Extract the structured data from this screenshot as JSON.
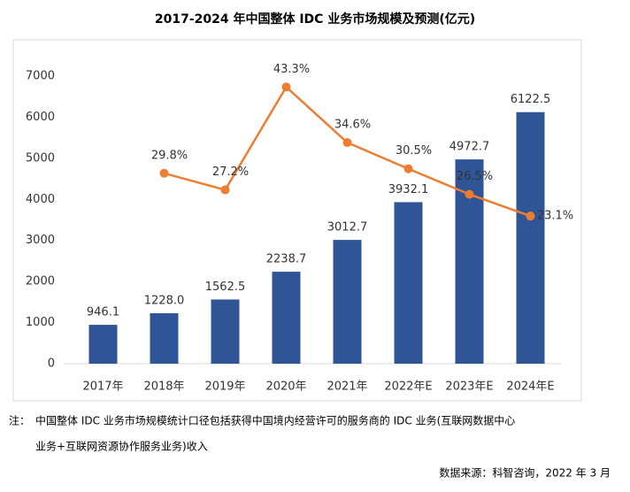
{
  "chart_data": {
    "type": "bar_line",
    "title": "2017-2024 年中国整体 IDC 业务市场规模及预测(亿元)",
    "categories": [
      "2017年",
      "2018年",
      "2019年",
      "2020年",
      "2021年",
      "2022年E",
      "2023年E",
      "2024年E"
    ],
    "series": [
      {
        "type": "bar",
        "color": "#2f5597",
        "values": [
          946.1,
          1228.0,
          1562.5,
          2238.7,
          3012.7,
          3932.1,
          4972.7,
          6122.5
        ],
        "value_labels": [
          "946.1",
          "1228.0",
          "1562.5",
          "2238.7",
          "3012.7",
          "3932.1",
          "4972.7",
          "6122.5"
        ]
      },
      {
        "type": "line",
        "axis": "y2",
        "color": "#ed7d31",
        "values": [
          null,
          29.8,
          27.2,
          43.3,
          34.6,
          30.5,
          26.5,
          23.1
        ],
        "value_labels": [
          null,
          "29.8%",
          "27.2%",
          "43.3%",
          "34.6%",
          "30.5%",
          "26.5%",
          "23.1%"
        ]
      }
    ],
    "ylim": [
      0,
      7000
    ],
    "yticks": [
      0,
      1000,
      2000,
      3000,
      4000,
      5000,
      6000,
      7000
    ],
    "y2lim": [
      0,
      45
    ],
    "note": {
      "label": "注：",
      "lines": [
        "中国整体 IDC 业务市场规模统计口径包括获得中国境内经营许可的服务商的 IDC 业务(互联网数据中心",
        "业务+互联网资源协作服务业务)收入"
      ]
    },
    "source": "数据来源：科智咨询，2022 年 3 月"
  }
}
